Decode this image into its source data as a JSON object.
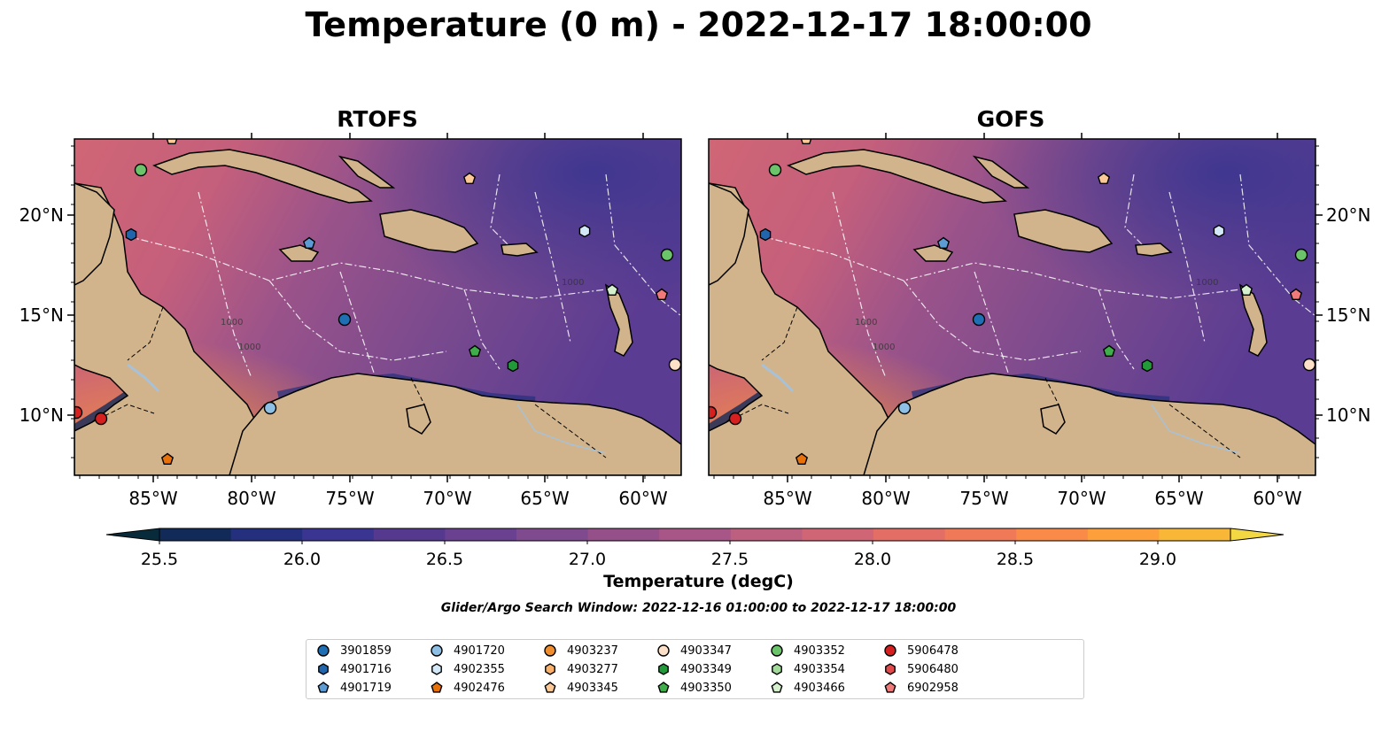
{
  "title": "Temperature (0 m) - 2022-12-17 18:00:00",
  "panels": [
    {
      "title": "RTOFS"
    },
    {
      "title": "GOFS"
    }
  ],
  "axes": {
    "lon_ticks": [
      "85°W",
      "80°W",
      "75°W",
      "70°W",
      "65°W",
      "60°W"
    ],
    "lat_ticks": [
      "20°N",
      "15°N",
      "10°N"
    ]
  },
  "colorbar": {
    "label": "Temperature (degC)",
    "ticks": [
      "25.5",
      "26.0",
      "26.5",
      "27.0",
      "27.5",
      "28.0",
      "28.5",
      "29.0"
    ],
    "colors": [
      "#082b3b",
      "#112a58",
      "#24307d",
      "#3a3590",
      "#54398f",
      "#6a4190",
      "#804b8e",
      "#95508a",
      "#a85687",
      "#bd5f7e",
      "#d06675",
      "#e26e66",
      "#f07957",
      "#f98a47",
      "#fd9f3b",
      "#f9b737",
      "#f3d743"
    ]
  },
  "search_window": "Glider/Argo Search Window: 2022-12-16 01:00:00 to 2022-12-17 18:00:00",
  "map": {
    "land": "#d2b48c",
    "ocean": "#7a4a8c",
    "contour_label": "1000"
  },
  "legend": [
    {
      "id": "3901859",
      "shape": "circle",
      "color": "#1f6fb4"
    },
    {
      "id": "4901716",
      "shape": "hexagon",
      "color": "#2166ac"
    },
    {
      "id": "4901719",
      "shape": "pentagon",
      "color": "#5d9bd5"
    },
    {
      "id": "4901720",
      "shape": "circle",
      "color": "#8ec0e6"
    },
    {
      "id": "4902355",
      "shape": "hexagon",
      "color": "#d4e9f7"
    },
    {
      "id": "4902476",
      "shape": "pentagon",
      "color": "#e8710a"
    },
    {
      "id": "4903237",
      "shape": "circle",
      "color": "#f08d2e"
    },
    {
      "id": "4903277",
      "shape": "hexagon",
      "color": "#f8b06a"
    },
    {
      "id": "4903345",
      "shape": "pentagon",
      "color": "#fbc896"
    },
    {
      "id": "4903347",
      "shape": "circle",
      "color": "#fde0c8"
    },
    {
      "id": "4903349",
      "shape": "hexagon",
      "color": "#239a3a"
    },
    {
      "id": "4903350",
      "shape": "pentagon",
      "color": "#3fae4a"
    },
    {
      "id": "4903352",
      "shape": "circle",
      "color": "#6cc46a"
    },
    {
      "id": "4903354",
      "shape": "hexagon",
      "color": "#a2da9a"
    },
    {
      "id": "4903466",
      "shape": "pentagon",
      "color": "#d4f0cc"
    },
    {
      "id": "5906478",
      "shape": "circle",
      "color": "#d62020"
    },
    {
      "id": "5906480",
      "shape": "hexagon",
      "color": "#e04a4a"
    },
    {
      "id": "6902958",
      "shape": "pentagon",
      "color": "#f07a7a"
    }
  ]
}
